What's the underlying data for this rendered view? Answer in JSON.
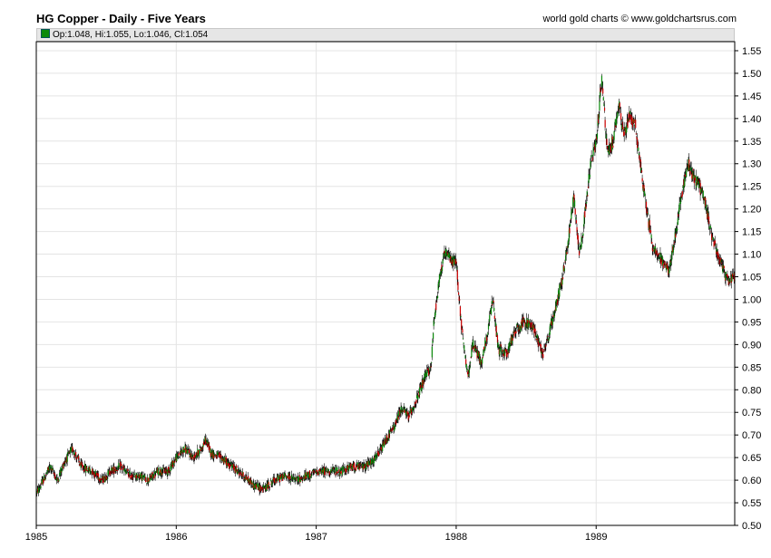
{
  "header": {
    "title": "HG Copper - Daily - Five Years",
    "credit": "world gold charts © www.goldchartsrus.com",
    "ohlc_text": "Op:1.048, Hi:1.055, Lo:1.046, Cl:1.054"
  },
  "colors": {
    "up": "#0a8a0a",
    "down": "#cc0000",
    "wick": "#000000",
    "grid": "#e4e4e4",
    "ohlc_background": "#e6e6e6"
  },
  "chart_data": {
    "type": "candlestick",
    "title": "HG Copper - Daily - Five Years",
    "xlabel": "",
    "ylabel": "",
    "x_range": [
      1985.0,
      1989.99
    ],
    "ylim": [
      0.5,
      1.57
    ],
    "x_tick_labels": [
      "1985",
      "1986",
      "1987",
      "1988",
      "1989"
    ],
    "y_tick_labels": [
      "0.50",
      "0.55",
      "0.60",
      "0.65",
      "0.70",
      "0.75",
      "0.80",
      "0.85",
      "0.90",
      "0.95",
      "1.00",
      "1.05",
      "1.10",
      "1.15",
      "1.20",
      "1.25",
      "1.30",
      "1.35",
      "1.40",
      "1.45",
      "1.50",
      "1.55"
    ],
    "y_axis_side": "right",
    "grid": true,
    "last_bar": {
      "open": 1.048,
      "high": 1.055,
      "low": 1.046,
      "close": 1.054
    },
    "price_path": [
      [
        1985.0,
        0.57
      ],
      [
        1985.05,
        0.6
      ],
      [
        1985.1,
        0.63
      ],
      [
        1985.15,
        0.6
      ],
      [
        1985.2,
        0.64
      ],
      [
        1985.26,
        0.67
      ],
      [
        1985.32,
        0.63
      ],
      [
        1985.4,
        0.62
      ],
      [
        1985.47,
        0.6
      ],
      [
        1985.53,
        0.62
      ],
      [
        1985.6,
        0.63
      ],
      [
        1985.67,
        0.61
      ],
      [
        1985.74,
        0.61
      ],
      [
        1985.8,
        0.6
      ],
      [
        1985.87,
        0.62
      ],
      [
        1985.94,
        0.62
      ],
      [
        1986.0,
        0.65
      ],
      [
        1986.06,
        0.67
      ],
      [
        1986.12,
        0.65
      ],
      [
        1986.18,
        0.67
      ],
      [
        1986.21,
        0.69
      ],
      [
        1986.25,
        0.66
      ],
      [
        1986.32,
        0.65
      ],
      [
        1986.4,
        0.63
      ],
      [
        1986.48,
        0.61
      ],
      [
        1986.55,
        0.59
      ],
      [
        1986.62,
        0.58
      ],
      [
        1986.7,
        0.6
      ],
      [
        1986.78,
        0.61
      ],
      [
        1986.86,
        0.6
      ],
      [
        1986.94,
        0.61
      ],
      [
        1987.02,
        0.62
      ],
      [
        1987.1,
        0.62
      ],
      [
        1987.18,
        0.62
      ],
      [
        1987.26,
        0.63
      ],
      [
        1987.33,
        0.63
      ],
      [
        1987.4,
        0.64
      ],
      [
        1987.45,
        0.66
      ],
      [
        1987.5,
        0.69
      ],
      [
        1987.56,
        0.72
      ],
      [
        1987.61,
        0.76
      ],
      [
        1987.66,
        0.74
      ],
      [
        1987.72,
        0.78
      ],
      [
        1987.78,
        0.83
      ],
      [
        1987.82,
        0.85
      ],
      [
        1987.84,
        0.95
      ],
      [
        1987.88,
        1.05
      ],
      [
        1987.92,
        1.1
      ],
      [
        1987.96,
        1.09
      ],
      [
        1988.0,
        1.08
      ],
      [
        1988.04,
        0.93
      ],
      [
        1988.08,
        0.83
      ],
      [
        1988.12,
        0.9
      ],
      [
        1988.18,
        0.86
      ],
      [
        1988.22,
        0.92
      ],
      [
        1988.26,
        1.0
      ],
      [
        1988.3,
        0.89
      ],
      [
        1988.36,
        0.88
      ],
      [
        1988.42,
        0.93
      ],
      [
        1988.48,
        0.95
      ],
      [
        1988.55,
        0.94
      ],
      [
        1988.62,
        0.88
      ],
      [
        1988.66,
        0.92
      ],
      [
        1988.7,
        0.97
      ],
      [
        1988.76,
        1.05
      ],
      [
        1988.8,
        1.13
      ],
      [
        1988.84,
        1.23
      ],
      [
        1988.88,
        1.1
      ],
      [
        1988.92,
        1.19
      ],
      [
        1988.96,
        1.3
      ],
      [
        1989.0,
        1.35
      ],
      [
        1989.04,
        1.49
      ],
      [
        1989.08,
        1.32
      ],
      [
        1989.12,
        1.35
      ],
      [
        1989.16,
        1.43
      ],
      [
        1989.2,
        1.36
      ],
      [
        1989.24,
        1.41
      ],
      [
        1989.28,
        1.38
      ],
      [
        1989.32,
        1.29
      ],
      [
        1989.36,
        1.2
      ],
      [
        1989.4,
        1.12
      ],
      [
        1989.46,
        1.09
      ],
      [
        1989.52,
        1.06
      ],
      [
        1989.58,
        1.17
      ],
      [
        1989.62,
        1.25
      ],
      [
        1989.66,
        1.3
      ],
      [
        1989.7,
        1.27
      ],
      [
        1989.74,
        1.25
      ],
      [
        1989.78,
        1.21
      ],
      [
        1989.82,
        1.15
      ],
      [
        1989.86,
        1.11
      ],
      [
        1989.9,
        1.07
      ],
      [
        1989.94,
        1.04
      ],
      [
        1989.99,
        1.054
      ]
    ]
  }
}
